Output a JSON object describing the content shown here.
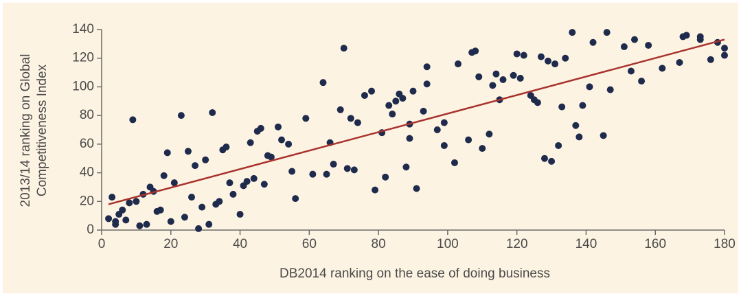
{
  "chart_data": {
    "type": "scatter",
    "xlabel": "DB2014 ranking on the ease of doing business",
    "ylabel": [
      "2013/14 ranking on Global",
      "Competitiveness Index"
    ],
    "xlim": [
      0,
      180
    ],
    "ylim": [
      0,
      140
    ],
    "xticks": [
      0,
      20,
      40,
      60,
      80,
      100,
      120,
      140,
      160,
      180
    ],
    "yticks": [
      0,
      20,
      40,
      60,
      80,
      100,
      120,
      140
    ],
    "color": "#1f2b4d",
    "x": [
      2,
      3,
      4,
      4,
      5,
      6,
      7,
      8,
      9,
      10,
      11,
      12,
      13,
      14,
      15,
      16,
      17,
      18,
      19,
      20,
      21,
      23,
      24,
      25,
      26,
      27,
      28,
      29,
      30,
      31,
      32,
      33,
      34,
      35,
      36,
      37,
      38,
      40,
      41,
      42,
      43,
      44,
      45,
      46,
      47,
      48,
      49,
      51,
      52,
      54,
      55,
      56,
      59,
      61,
      64,
      65,
      66,
      67,
      69,
      70,
      71,
      72,
      73,
      74,
      76,
      78,
      79,
      81,
      82,
      83,
      84,
      85,
      86,
      87,
      88,
      89,
      89,
      90,
      91,
      93,
      94,
      94,
      97,
      99,
      99,
      102,
      103,
      106,
      107,
      108,
      109,
      110,
      112,
      113,
      114,
      115,
      116,
      119,
      120,
      121,
      122,
      124,
      125,
      126,
      127,
      128,
      129,
      130,
      131,
      132,
      133,
      134,
      136,
      137,
      138,
      139,
      141,
      142,
      145,
      146,
      147,
      151,
      153,
      154,
      156,
      158,
      162,
      167,
      168,
      169,
      173,
      173,
      176,
      178,
      180,
      180
    ],
    "y": [
      8,
      23,
      6,
      4,
      11,
      14,
      7,
      19,
      77,
      20,
      3,
      25,
      4,
      30,
      27,
      13,
      14,
      38,
      54,
      6,
      33,
      80,
      9,
      55,
      23,
      45,
      1,
      16,
      49,
      4,
      82,
      18,
      20,
      56,
      58,
      33,
      25,
      11,
      31,
      34,
      61,
      36,
      69,
      71,
      32,
      52,
      51,
      72,
      63,
      60,
      41,
      22,
      78,
      39,
      103,
      39,
      61,
      46,
      84,
      127,
      43,
      78,
      42,
      75,
      94,
      97,
      28,
      68,
      37,
      87,
      81,
      90,
      95,
      92,
      44,
      74,
      64,
      97,
      29,
      83,
      102,
      114,
      70,
      75,
      59,
      47,
      116,
      63,
      124,
      125,
      107,
      57,
      67,
      101,
      109,
      91,
      105,
      108,
      123,
      106,
      122,
      94,
      91,
      89,
      121,
      50,
      118,
      48,
      116,
      59,
      86,
      120,
      138,
      73,
      65,
      87,
      100,
      131,
      66,
      138,
      98,
      128,
      111,
      133,
      104,
      129,
      113,
      117,
      135,
      136,
      135,
      133,
      119,
      131,
      127,
      122
    ],
    "trendline": {
      "x": [
        2,
        180
      ],
      "y": [
        18,
        133
      ],
      "color": "#a8322d"
    }
  }
}
